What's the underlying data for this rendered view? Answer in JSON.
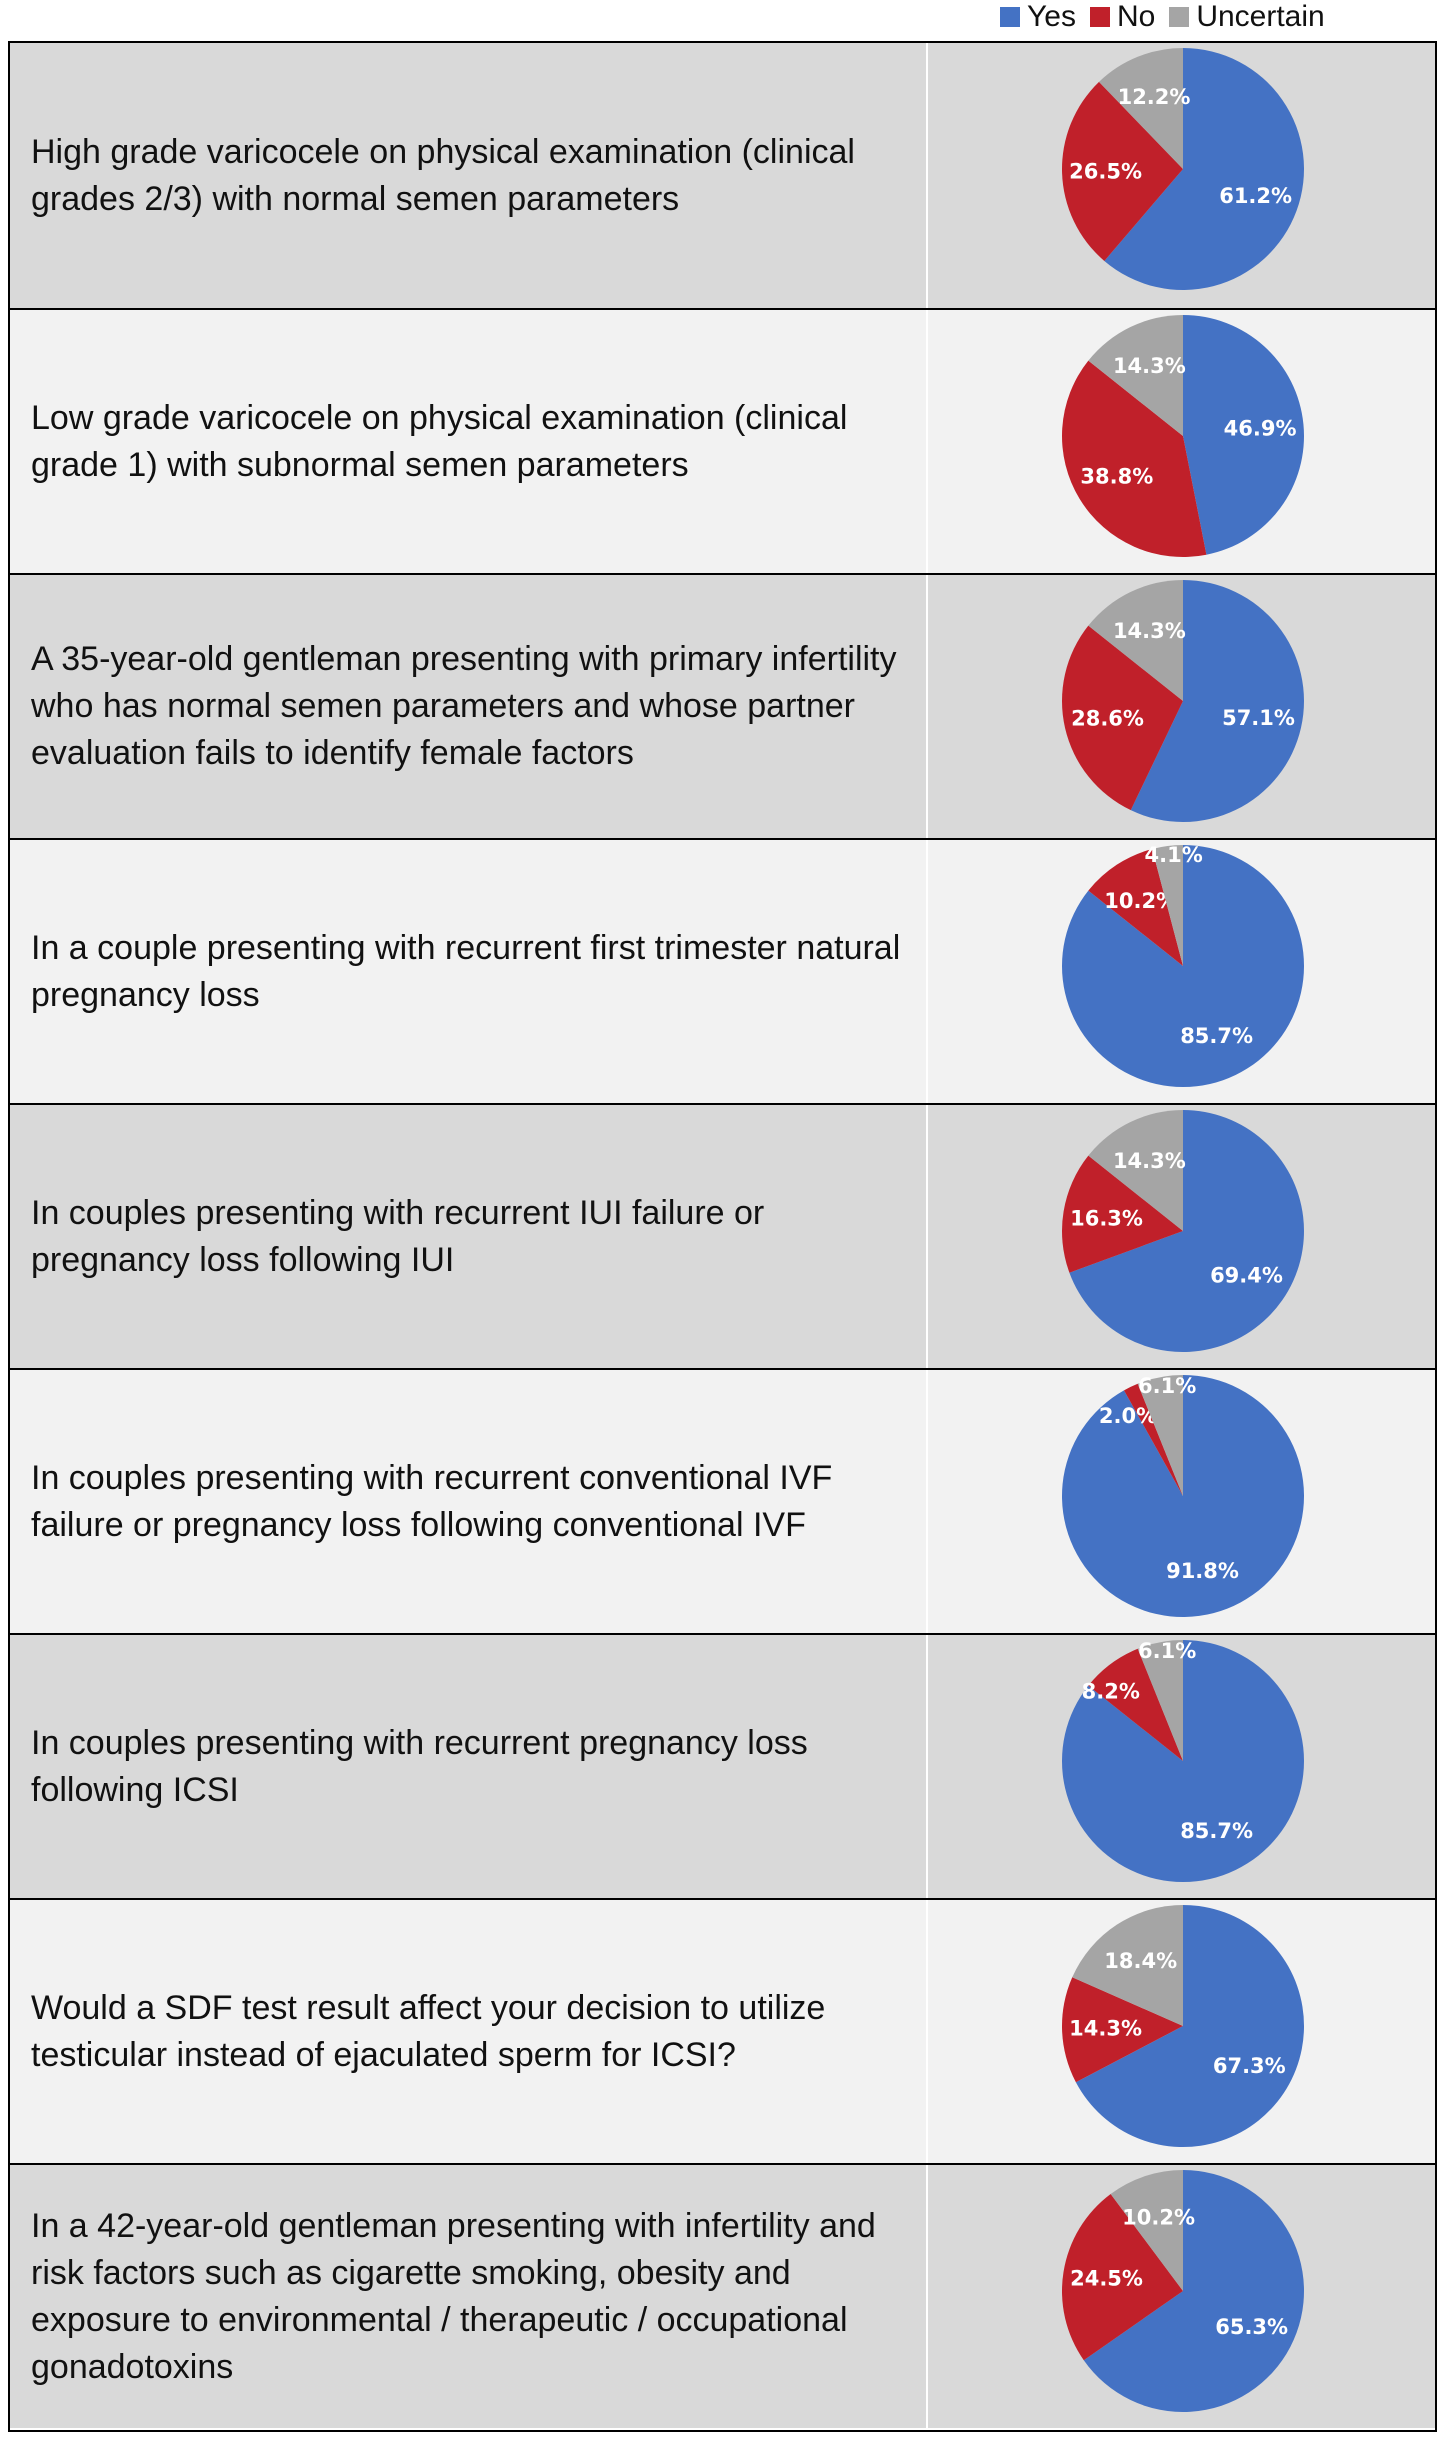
{
  "legend": [
    {
      "label": "Yes",
      "color": "#4472c4"
    },
    {
      "label": "No",
      "color": "#c0202a"
    },
    {
      "label": "Uncertain",
      "color": "#a5a5a5"
    }
  ],
  "chart_data": {
    "type": "pie",
    "series_order": [
      "Yes",
      "No",
      "Uncertain"
    ],
    "rows": [
      {
        "question": "High grade varicocele on physical examination (clinical grades 2/3) with normal semen parameters",
        "values": [
          61.2,
          26.5,
          12.2
        ],
        "labels": [
          "61.2%",
          "26.5%",
          "12.2%"
        ]
      },
      {
        "question": "Low grade varicocele on physical examination (clinical grade 1) with subnormal semen parameters",
        "values": [
          46.9,
          38.8,
          14.3
        ],
        "labels": [
          "46.9%",
          "38.8%",
          "14.3%"
        ]
      },
      {
        "question": "A 35-year-old gentleman presenting with primary infertility who has normal semen parameters and whose partner evaluation fails to identify female factors",
        "values": [
          57.1,
          28.6,
          14.3
        ],
        "labels": [
          "57.1%",
          "28.6%",
          "14.3%"
        ]
      },
      {
        "question": "In a couple presenting with recurrent first trimester natural pregnancy loss",
        "values": [
          85.7,
          10.2,
          4.1
        ],
        "labels": [
          "85.7%",
          "10.2%",
          "4.1%"
        ]
      },
      {
        "question": "In couples presenting with recurrent IUI failure or pregnancy loss following IUI",
        "values": [
          69.4,
          16.3,
          14.3
        ],
        "labels": [
          "69.4%",
          "16.3%",
          "14.3%"
        ]
      },
      {
        "question": "In couples presenting with recurrent conventional IVF failure or pregnancy loss following conventional IVF",
        "values": [
          91.8,
          2.0,
          6.1
        ],
        "labels": [
          "91.8%",
          "2.0%",
          "6.1%"
        ]
      },
      {
        "question": "In couples presenting with recurrent pregnancy loss following ICSI",
        "values": [
          85.7,
          8.2,
          6.1
        ],
        "labels": [
          "85.7%",
          "8.2%",
          "6.1%"
        ]
      },
      {
        "question": "Would a SDF test result affect your decision to utilize testicular instead of ejaculated sperm for ICSI?",
        "values": [
          67.3,
          14.3,
          18.4
        ],
        "labels": [
          "67.3%",
          "14.3%",
          "18.4%"
        ]
      },
      {
        "question": "In a 42-year-old gentleman presenting with infertility and risk factors such as cigarette smoking, obesity and exposure to environmental / therapeutic / occupational gonadotoxins",
        "values": [
          65.3,
          24.5,
          10.2
        ],
        "labels": [
          "65.3%",
          "24.5%",
          "10.2%"
        ]
      }
    ]
  }
}
